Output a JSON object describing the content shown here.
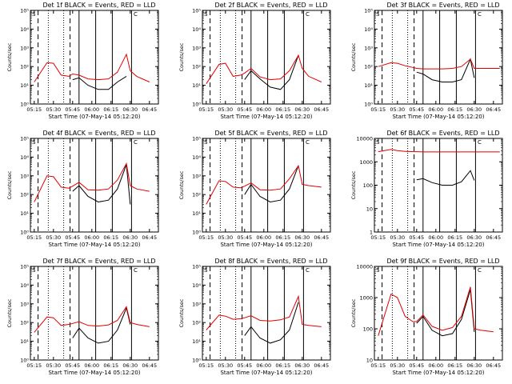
{
  "colors": {
    "events": "#000000",
    "lld": "#e00000",
    "background": "#ffffff"
  },
  "x_tick_labels": [
    "05:15",
    "05:30",
    "05:45",
    "06:00",
    "06:15",
    "06:30",
    "06:45"
  ],
  "x_axis_label": "Start Time (07-May-14 05:12:20)",
  "y_axis_label": "Counts/sec",
  "annotation_label": "S",
  "annotation_label_2": "C",
  "chart_data": [
    {
      "type": "line",
      "title": "Det 1f BLACK = Events, RED = LLD",
      "xlabel": "Start Time (07-May-14 05:12:20)",
      "ylabel": "Counts/sec",
      "y_scale": "log",
      "ylim": [
        1,
        100000
      ],
      "y_tick_labels": [
        "10⁰",
        "10¹",
        "10²",
        "10³",
        "10⁴",
        "10⁵"
      ],
      "y_tick_values": [
        1,
        10,
        100,
        1000,
        10000,
        100000
      ],
      "x": [
        "05:15",
        "05:25",
        "05:30",
        "05:36",
        "05:42",
        "05:45",
        "05:50",
        "05:57",
        "06:05",
        "06:13",
        "06:20",
        "06:27",
        "06:30",
        "06:35",
        "06:45",
        "06:50"
      ],
      "series": [
        {
          "name": "BLACK = Events",
          "values": [
            null,
            null,
            null,
            null,
            null,
            20,
            25,
            10,
            6,
            6,
            15,
            30,
            null,
            null,
            null,
            null
          ]
        },
        {
          "name": "RED = LLD",
          "values": [
            15,
            160,
            150,
            35,
            30,
            40,
            35,
            22,
            20,
            22,
            50,
            450,
            60,
            30,
            15,
            null
          ]
        }
      ]
    },
    {
      "type": "line",
      "title": "Det 2f BLACK = Events, RED = LLD",
      "xlabel": "Start Time (07-May-14 05:12:20)",
      "ylabel": "Counts/sec",
      "y_scale": "log",
      "ylim": [
        1,
        100000
      ],
      "y_tick_labels": [
        "10⁰",
        "10¹",
        "10²",
        "10³",
        "10⁴",
        "10⁵"
      ],
      "y_tick_values": [
        1,
        10,
        100,
        1000,
        10000,
        100000
      ],
      "x": [
        "05:15",
        "05:25",
        "05:30",
        "05:36",
        "05:42",
        "05:45",
        "05:50",
        "05:57",
        "06:05",
        "06:13",
        "06:20",
        "06:27",
        "06:30",
        "06:35",
        "06:45",
        "06:50"
      ],
      "series": [
        {
          "name": "BLACK = Events",
          "values": [
            null,
            null,
            null,
            null,
            null,
            20,
            60,
            22,
            8,
            6,
            20,
            400,
            null,
            null,
            null,
            null
          ]
        },
        {
          "name": "RED = LLD",
          "values": [
            12,
            130,
            150,
            30,
            35,
            45,
            80,
            28,
            20,
            22,
            60,
            400,
            80,
            30,
            15,
            null
          ]
        }
      ]
    },
    {
      "type": "line",
      "title": "Det 3f BLACK = Events, RED = LLD",
      "xlabel": "Start Time (07-May-14 05:12:20)",
      "ylabel": "Counts/sec",
      "y_scale": "log",
      "ylim": [
        1,
        100000
      ],
      "y_tick_labels": [
        "10⁰",
        "10¹",
        "10²",
        "10³",
        "10⁴",
        "10⁵"
      ],
      "y_tick_values": [
        1,
        10,
        100,
        1000,
        10000,
        100000
      ],
      "x": [
        "05:15",
        "05:25",
        "05:30",
        "05:36",
        "05:42",
        "05:45",
        "05:50",
        "05:57",
        "06:05",
        "06:13",
        "06:20",
        "06:27",
        "06:30",
        "06:35",
        "06:45",
        "06:50"
      ],
      "series": [
        {
          "name": "BLACK = Events",
          "values": [
            null,
            null,
            null,
            null,
            null,
            50,
            40,
            20,
            15,
            15,
            20,
            250,
            25,
            null,
            null,
            null
          ]
        },
        {
          "name": "RED = LLD",
          "values": [
            100,
            160,
            150,
            110,
            90,
            80,
            75,
            75,
            75,
            80,
            100,
            250,
            80,
            80,
            80,
            80
          ]
        }
      ]
    },
    {
      "type": "line",
      "title": "Det 4f BLACK = Events, RED = LLD",
      "xlabel": "Start Time (07-May-14 05:12:20)",
      "ylabel": "Counts/sec",
      "y_scale": "log",
      "ylim": [
        1,
        100000
      ],
      "y_tick_labels": [
        "10⁰",
        "10¹",
        "10²",
        "10³",
        "10⁴",
        "10⁵"
      ],
      "y_tick_values": [
        1,
        10,
        100,
        1000,
        10000,
        100000
      ],
      "x": [
        "05:15",
        "05:25",
        "05:30",
        "05:36",
        "05:42",
        "05:45",
        "05:50",
        "05:57",
        "06:05",
        "06:13",
        "06:20",
        "06:27",
        "06:30",
        "06:35",
        "06:45",
        "06:50"
      ],
      "series": [
        {
          "name": "BLACK = Events",
          "values": [
            null,
            null,
            null,
            null,
            null,
            150,
            300,
            80,
            40,
            50,
            200,
            4000,
            30,
            null,
            null,
            null
          ]
        },
        {
          "name": "RED = LLD",
          "values": [
            40,
            1000,
            900,
            250,
            220,
            280,
            450,
            180,
            170,
            200,
            600,
            4500,
            300,
            200,
            150,
            null
          ]
        }
      ]
    },
    {
      "type": "line",
      "title": "Det 5f BLACK = Events, RED = LLD",
      "xlabel": "Start Time (07-May-14 05:12:20)",
      "ylabel": "Counts/sec",
      "y_scale": "log",
      "ylim": [
        1,
        100000
      ],
      "y_tick_labels": [
        "10⁰",
        "10¹",
        "10²",
        "10³",
        "10⁴",
        "10⁵"
      ],
      "y_tick_values": [
        1,
        10,
        100,
        1000,
        10000,
        100000
      ],
      "x": [
        "05:15",
        "05:25",
        "05:30",
        "05:36",
        "05:42",
        "05:45",
        "05:50",
        "05:57",
        "06:05",
        "06:13",
        "06:20",
        "06:27",
        "06:30",
        "06:35",
        "06:45",
        "06:50"
      ],
      "series": [
        {
          "name": "BLACK = Events",
          "values": [
            null,
            null,
            null,
            null,
            null,
            100,
            350,
            80,
            40,
            50,
            200,
            3500,
            null,
            null,
            null,
            null
          ]
        },
        {
          "name": "RED = LLD",
          "values": [
            30,
            550,
            500,
            250,
            230,
            280,
            420,
            180,
            170,
            200,
            700,
            3500,
            350,
            300,
            250,
            null
          ]
        }
      ]
    },
    {
      "type": "line",
      "title": "Det 6f BLACK = Events, RED = LLD",
      "xlabel": "Start Time (07-May-14 05:12:20)",
      "ylabel": "Counts/sec",
      "y_scale": "log",
      "ylim": [
        1,
        10000
      ],
      "y_tick_labels": [
        "1",
        "10",
        "100",
        "1000",
        "10000"
      ],
      "y_tick_values": [
        1,
        10,
        100,
        1000,
        10000
      ],
      "x": [
        "05:15",
        "05:25",
        "05:30",
        "05:36",
        "05:42",
        "05:45",
        "05:50",
        "05:57",
        "06:05",
        "06:13",
        "06:20",
        "06:27",
        "06:30",
        "06:35",
        "06:45",
        "06:50"
      ],
      "series": [
        {
          "name": "BLACK = Events",
          "values": [
            null,
            null,
            null,
            null,
            null,
            170,
            190,
            130,
            100,
            100,
            140,
            420,
            160,
            null,
            null,
            null
          ]
        },
        {
          "name": "RED = LLD",
          "values": [
            2700,
            3400,
            3000,
            2800,
            2700,
            2700,
            2650,
            2650,
            2650,
            2650,
            2650,
            2650,
            2650,
            2650,
            2650,
            2650
          ]
        }
      ]
    },
    {
      "type": "line",
      "title": "Det 7f BLACK = Events, RED = LLD",
      "xlabel": "Start Time (07-May-14 05:12:20)",
      "ylabel": "Counts/sec",
      "y_scale": "log",
      "ylim": [
        1,
        100000
      ],
      "y_tick_labels": [
        "10⁰",
        "10¹",
        "10²",
        "10³",
        "10⁴",
        "10⁵"
      ],
      "y_tick_values": [
        1,
        10,
        100,
        1000,
        10000,
        100000
      ],
      "x": [
        "05:15",
        "05:25",
        "05:30",
        "05:36",
        "05:42",
        "05:45",
        "05:50",
        "05:57",
        "06:05",
        "06:13",
        "06:20",
        "06:27",
        "06:30",
        "06:35",
        "06:45",
        "06:50"
      ],
      "series": [
        {
          "name": "BLACK = Events",
          "values": [
            null,
            null,
            null,
            null,
            null,
            15,
            50,
            15,
            8,
            10,
            40,
            600,
            80,
            null,
            null,
            null
          ]
        },
        {
          "name": "RED = LLD",
          "values": [
            30,
            200,
            180,
            70,
            80,
            90,
            110,
            70,
            65,
            75,
            130,
            700,
            100,
            80,
            60,
            null
          ]
        }
      ]
    },
    {
      "type": "line",
      "title": "Det 8f BLACK = Events, RED = LLD",
      "xlabel": "Start Time (07-May-14 05:12:20)",
      "ylabel": "Counts/sec",
      "y_scale": "log",
      "ylim": [
        1,
        100000
      ],
      "y_tick_labels": [
        "10⁰",
        "10¹",
        "10²",
        "10³",
        "10⁴",
        "10⁵"
      ],
      "y_tick_values": [
        1,
        10,
        100,
        1000,
        10000,
        100000
      ],
      "x": [
        "05:15",
        "05:25",
        "05:30",
        "05:36",
        "05:42",
        "05:45",
        "05:50",
        "05:57",
        "06:05",
        "06:13",
        "06:20",
        "06:27",
        "06:30",
        "06:35",
        "06:45",
        "06:50"
      ],
      "series": [
        {
          "name": "BLACK = Events",
          "values": [
            null,
            null,
            null,
            null,
            null,
            20,
            60,
            15,
            8,
            12,
            40,
            1200,
            null,
            null,
            null,
            null
          ]
        },
        {
          "name": "RED = LLD",
          "values": [
            40,
            250,
            220,
            150,
            160,
            180,
            230,
            130,
            120,
            140,
            200,
            2500,
            80,
            70,
            60,
            null
          ]
        }
      ]
    },
    {
      "type": "line",
      "title": "Det 9f BLACK = Events, RED = LLD",
      "xlabel": "Start Time (07-May-14 05:12:20)",
      "ylabel": "Counts/sec",
      "y_scale": "log",
      "ylim": [
        10,
        10000
      ],
      "y_tick_labels": [
        "10",
        "100",
        "1000",
        "10000"
      ],
      "y_tick_values": [
        10,
        100,
        1000,
        10000
      ],
      "x": [
        "05:15",
        "05:25",
        "05:30",
        "05:36",
        "05:42",
        "05:45",
        "05:50",
        "05:57",
        "06:05",
        "06:13",
        "06:20",
        "06:27",
        "06:30",
        "06:35",
        "06:45",
        "06:50"
      ],
      "series": [
        {
          "name": "BLACK = Events",
          "values": [
            null,
            null,
            null,
            null,
            null,
            150,
            250,
            90,
            60,
            70,
            200,
            1800,
            80,
            null,
            null,
            null
          ]
        },
        {
          "name": "RED = LLD",
          "values": [
            60,
            1300,
            1000,
            250,
            170,
            170,
            280,
            120,
            90,
            110,
            250,
            2200,
            100,
            90,
            80,
            null
          ]
        }
      ]
    }
  ]
}
